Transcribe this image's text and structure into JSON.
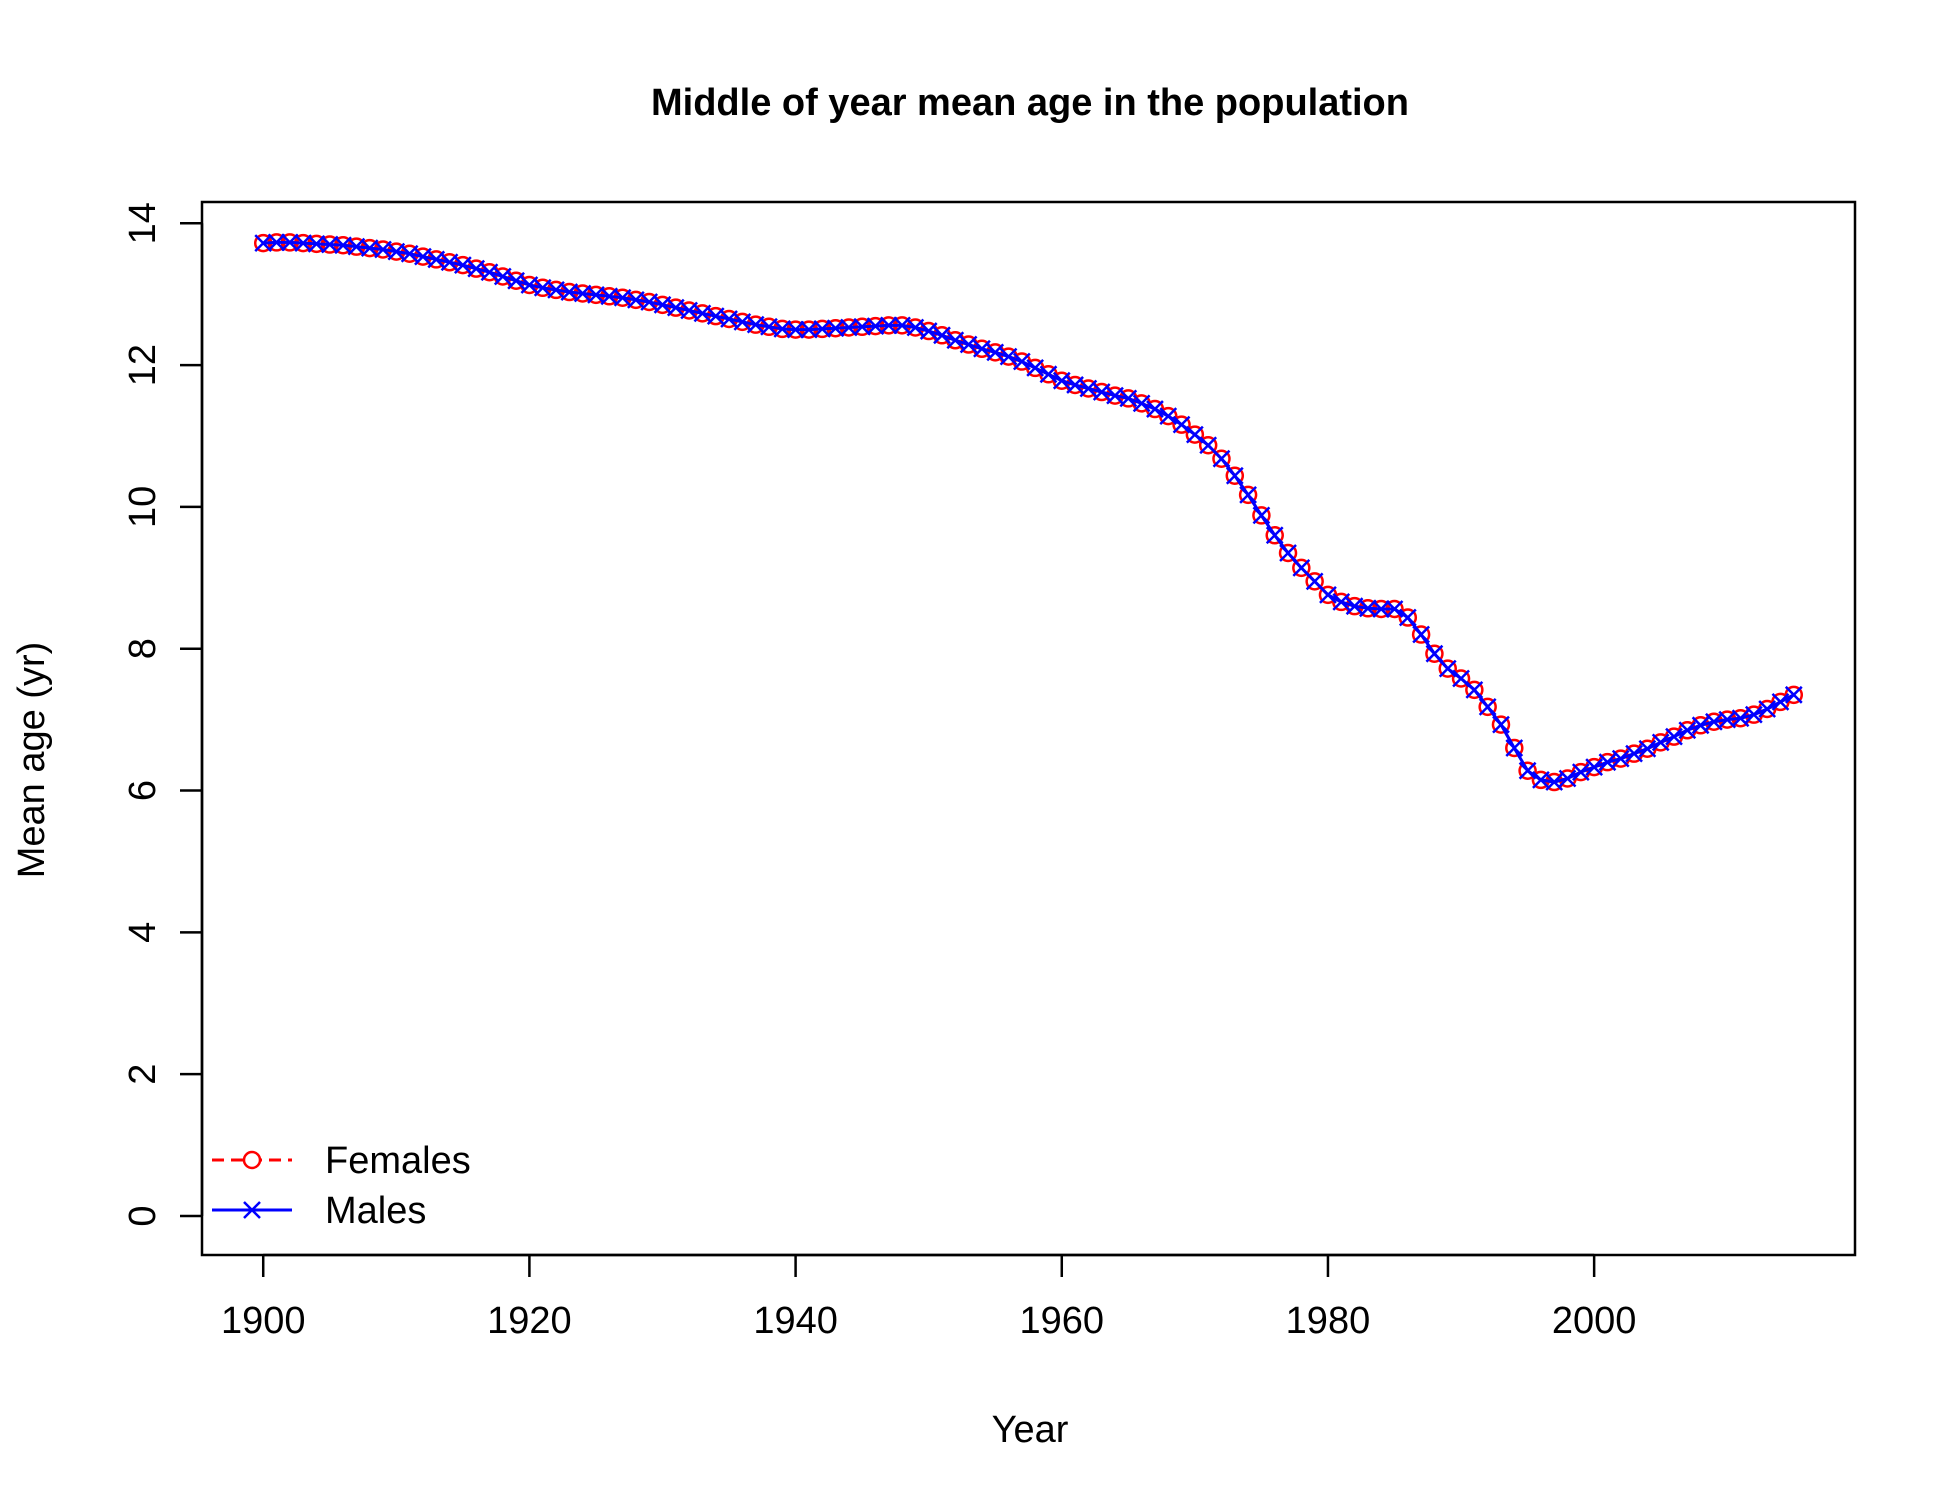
{
  "chart_data": {
    "type": "line",
    "title": "Middle of year mean age in the population",
    "xlabel": "Year",
    "ylabel": "Mean age (yr)",
    "xlim": [
      1895.4,
      2019.6
    ],
    "ylim": [
      -0.55,
      14.3
    ],
    "xticks": [
      1900,
      1920,
      1940,
      1960,
      1980,
      2000
    ],
    "yticks": [
      0,
      2,
      4,
      6,
      8,
      10,
      12,
      14
    ],
    "grid": false,
    "legend": {
      "position": "bottom-left"
    },
    "x": [
      1900,
      1901,
      1902,
      1903,
      1904,
      1905,
      1906,
      1907,
      1908,
      1909,
      1910,
      1911,
      1912,
      1913,
      1914,
      1915,
      1916,
      1917,
      1918,
      1919,
      1920,
      1921,
      1922,
      1923,
      1924,
      1925,
      1926,
      1927,
      1928,
      1929,
      1930,
      1931,
      1932,
      1933,
      1934,
      1935,
      1936,
      1937,
      1938,
      1939,
      1940,
      1941,
      1942,
      1943,
      1944,
      1945,
      1946,
      1947,
      1948,
      1949,
      1950,
      1951,
      1952,
      1953,
      1954,
      1955,
      1956,
      1957,
      1958,
      1959,
      1960,
      1961,
      1962,
      1963,
      1964,
      1965,
      1966,
      1967,
      1968,
      1969,
      1970,
      1971,
      1972,
      1973,
      1974,
      1975,
      1976,
      1977,
      1978,
      1979,
      1980,
      1981,
      1982,
      1983,
      1984,
      1985,
      1986,
      1987,
      1988,
      1989,
      1990,
      1991,
      1992,
      1993,
      1994,
      1995,
      1996,
      1997,
      1998,
      1999,
      2000,
      2001,
      2002,
      2003,
      2004,
      2005,
      2006,
      2007,
      2008,
      2009,
      2010,
      2011,
      2012,
      2013,
      2014,
      2015
    ],
    "series": [
      {
        "name": "Females",
        "color": "#ff0000",
        "line_style": "dashed",
        "marker": "circle",
        "values": [
          13.72,
          13.73,
          13.73,
          13.72,
          13.71,
          13.7,
          13.69,
          13.67,
          13.65,
          13.63,
          13.6,
          13.57,
          13.53,
          13.49,
          13.45,
          13.41,
          13.36,
          13.31,
          13.25,
          13.19,
          13.13,
          13.09,
          13.06,
          13.03,
          13.01,
          12.99,
          12.97,
          12.95,
          12.92,
          12.89,
          12.85,
          12.81,
          12.77,
          12.73,
          12.69,
          12.65,
          12.61,
          12.57,
          12.54,
          12.51,
          12.5,
          12.5,
          12.51,
          12.52,
          12.53,
          12.54,
          12.55,
          12.56,
          12.56,
          12.53,
          12.48,
          12.42,
          12.35,
          12.29,
          12.23,
          12.18,
          12.12,
          12.05,
          11.96,
          11.87,
          11.78,
          11.72,
          11.67,
          11.62,
          11.57,
          11.53,
          11.46,
          11.38,
          11.28,
          11.16,
          11.02,
          10.87,
          10.68,
          10.44,
          10.17,
          9.88,
          9.6,
          9.35,
          9.14,
          8.95,
          8.76,
          8.66,
          8.6,
          8.57,
          8.56,
          8.56,
          8.44,
          8.2,
          7.93,
          7.72,
          7.58,
          7.42,
          7.18,
          6.93,
          6.6,
          6.28,
          6.15,
          6.12,
          6.17,
          6.26,
          6.33,
          6.4,
          6.45,
          6.52,
          6.59,
          6.68,
          6.76,
          6.85,
          6.92,
          6.97,
          7.0,
          7.02,
          7.07,
          7.15,
          7.25,
          7.35
        ]
      },
      {
        "name": "Males",
        "color": "#0000ff",
        "line_style": "solid",
        "marker": "cross",
        "values": [
          13.72,
          13.73,
          13.73,
          13.72,
          13.71,
          13.7,
          13.69,
          13.67,
          13.65,
          13.63,
          13.6,
          13.57,
          13.53,
          13.49,
          13.45,
          13.41,
          13.36,
          13.31,
          13.25,
          13.19,
          13.13,
          13.09,
          13.06,
          13.03,
          13.01,
          12.99,
          12.97,
          12.95,
          12.92,
          12.89,
          12.85,
          12.81,
          12.77,
          12.73,
          12.69,
          12.65,
          12.61,
          12.57,
          12.54,
          12.51,
          12.5,
          12.5,
          12.51,
          12.52,
          12.53,
          12.54,
          12.55,
          12.56,
          12.56,
          12.53,
          12.48,
          12.42,
          12.35,
          12.29,
          12.23,
          12.18,
          12.12,
          12.05,
          11.96,
          11.87,
          11.78,
          11.72,
          11.67,
          11.62,
          11.57,
          11.53,
          11.46,
          11.38,
          11.28,
          11.16,
          11.02,
          10.87,
          10.68,
          10.44,
          10.17,
          9.88,
          9.6,
          9.35,
          9.14,
          8.95,
          8.76,
          8.66,
          8.6,
          8.57,
          8.56,
          8.56,
          8.44,
          8.2,
          7.93,
          7.72,
          7.58,
          7.42,
          7.18,
          6.93,
          6.6,
          6.28,
          6.15,
          6.12,
          6.17,
          6.26,
          6.33,
          6.4,
          6.45,
          6.52,
          6.59,
          6.68,
          6.76,
          6.85,
          6.92,
          6.97,
          7.0,
          7.02,
          7.07,
          7.15,
          7.25,
          7.35
        ]
      }
    ]
  }
}
